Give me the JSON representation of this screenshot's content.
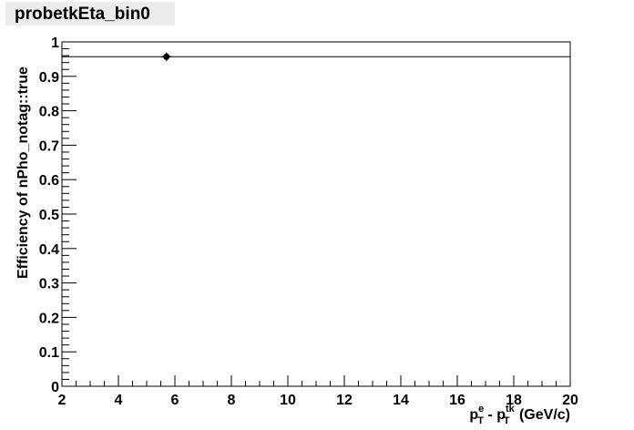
{
  "chart_data": {
    "type": "scatter",
    "title": "probetkEta_bin0",
    "xlabel": {
      "p": "p",
      "sup1": "e",
      "sub1": "T",
      "minus": " - ",
      "p2": "p",
      "sup2": "tk",
      "sub2": "T",
      "unit": " (GeV/c)"
    },
    "ylabel": "Efficiency of nPho_notag::true",
    "xlim": [
      2,
      20
    ],
    "ylim": [
      0,
      1
    ],
    "x_ticks": [
      "2",
      "4",
      "6",
      "8",
      "10",
      "12",
      "14",
      "16",
      "18",
      "20"
    ],
    "y_ticks": [
      "0",
      "0.1",
      "0.2",
      "0.3",
      "0.4",
      "0.5",
      "0.6",
      "0.7",
      "0.8",
      "0.9",
      "1"
    ],
    "points": [
      {
        "x": 5.7,
        "y": 0.957,
        "yerr": 0.012
      }
    ],
    "reference_line": {
      "y": 0.957
    },
    "grid": false,
    "colors": {
      "marker": "#000000",
      "axes": "#000000",
      "title_bg": "#ececec"
    }
  }
}
